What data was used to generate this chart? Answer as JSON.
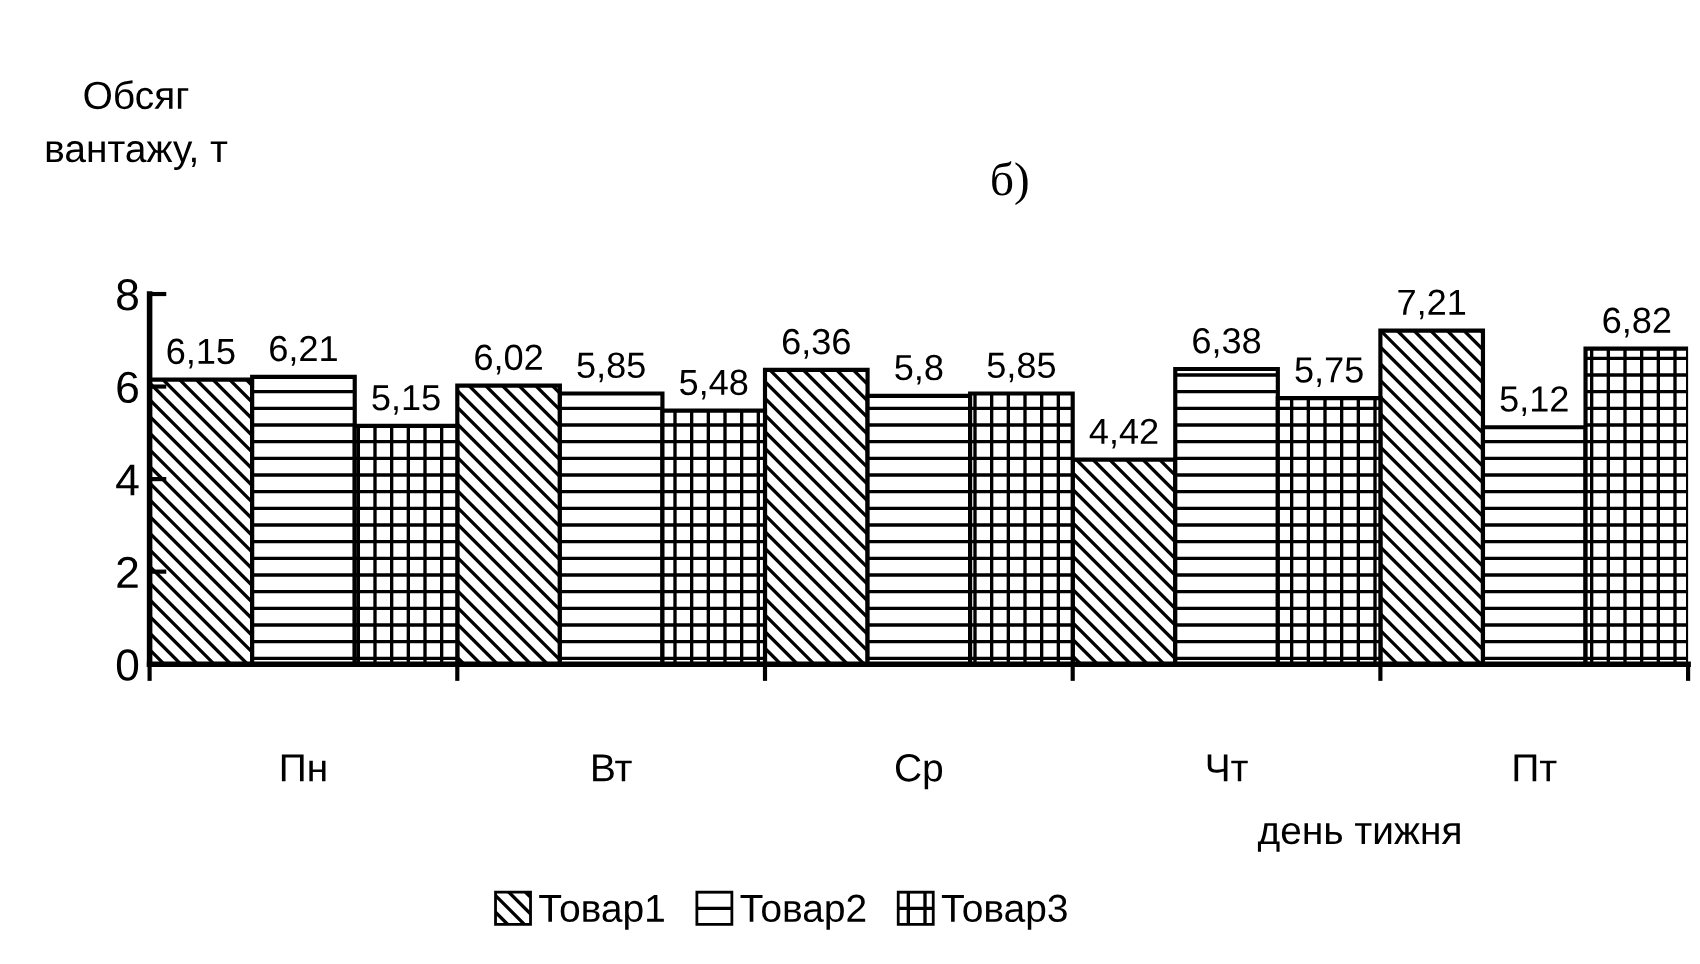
{
  "chart_data": {
    "type": "bar",
    "title": "б)",
    "xlabel": "день тижня",
    "ylabel": "Обсяг вантажу, т",
    "categories": [
      "Пн",
      "Вт",
      "Ср",
      "Чт",
      "Пт"
    ],
    "series": [
      {
        "name": "Товар1",
        "color": "#000000",
        "values": [
          6.15,
          6.02,
          6.36,
          4.42,
          7.21
        ],
        "value_labels": [
          "6,15",
          "6,02",
          "6,36",
          "4,42",
          "7,21"
        ]
      },
      {
        "name": "Товар2",
        "color": "#000000",
        "values": [
          6.21,
          5.85,
          5.8,
          6.38,
          5.12
        ],
        "value_labels": [
          "6,21",
          "5,85",
          "5,8",
          "6,38",
          "5,12"
        ]
      },
      {
        "name": "Товар3",
        "color": "#000000",
        "values": [
          5.15,
          5.48,
          5.85,
          5.75,
          6.82
        ],
        "value_labels": [
          "5,15",
          "5,48",
          "5,85",
          "5,75",
          "6,82"
        ]
      }
    ],
    "ylim": [
      0,
      8
    ],
    "yticks": [
      0,
      2,
      4,
      6,
      8
    ],
    "grid": false,
    "legend": "bottom"
  }
}
